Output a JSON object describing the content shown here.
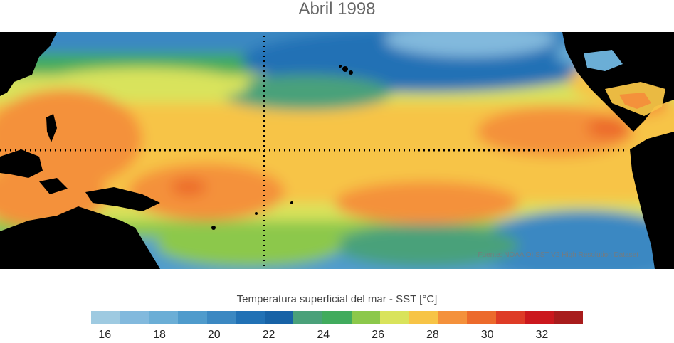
{
  "title": "Abril 1998",
  "source_credit": "Fuente: NOAA OI SST V2 High Resolution Dataset",
  "legend": {
    "label": "Temperatura superficial del mar - SST  [°C]",
    "colors": [
      "#9ecae1",
      "#82b9dd",
      "#6baed6",
      "#4f9bcc",
      "#3b88c2",
      "#2171b5",
      "#1762a6",
      "#4aa17a",
      "#41ab5d",
      "#8cc84b",
      "#d9e35b",
      "#f7c446",
      "#f4913b",
      "#ec6a2c",
      "#de3b26",
      "#cb181d",
      "#a81c1c"
    ],
    "ticks": [
      "16",
      "18",
      "20",
      "22",
      "24",
      "26",
      "28",
      "30",
      "32"
    ],
    "tick_values": [
      16,
      18,
      20,
      22,
      24,
      26,
      28,
      30,
      32
    ],
    "range": [
      15.5,
      33.5
    ],
    "bin_width": 1
  },
  "guides": {
    "equator": "dotted black line",
    "meridian": "dotted black line"
  },
  "colors": {
    "land": "#000000",
    "title": "#666666"
  }
}
